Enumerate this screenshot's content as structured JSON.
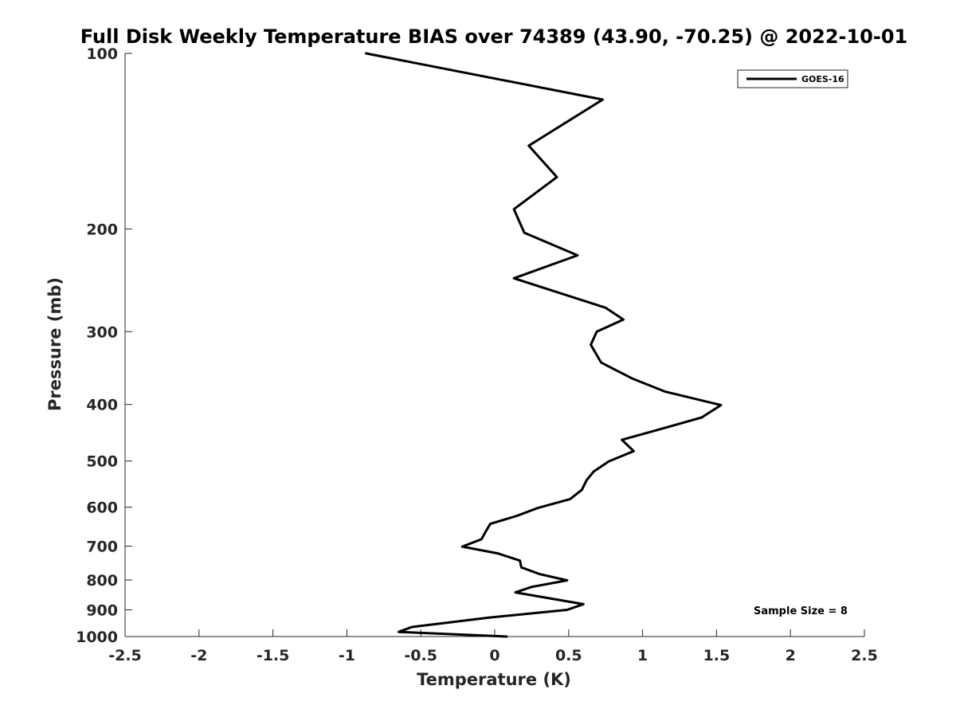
{
  "chart_data": {
    "type": "line",
    "title": "Full Disk Weekly Temperature BIAS over 74389 (43.90, -70.25) @ 2022-10-01",
    "xlabel": "Temperature (K)",
    "ylabel": "Pressure (mb)",
    "xlim": [
      -2.5,
      2.5
    ],
    "ylim": [
      100,
      1000
    ],
    "yscale": "log",
    "yreversed": true,
    "x_ticks": [
      -2.5,
      -2,
      -1.5,
      -1,
      -0.5,
      0,
      0.5,
      1,
      1.5,
      2,
      2.5
    ],
    "x_tick_labels": [
      "-2.5",
      "-2",
      "-1.5",
      "-1",
      "-0.5",
      "0",
      "0.5",
      "1",
      "1.5",
      "2",
      "2.5"
    ],
    "y_ticks": [
      100,
      200,
      300,
      400,
      500,
      600,
      700,
      800,
      900,
      1000
    ],
    "y_tick_labels": [
      "100",
      "200",
      "300",
      "400",
      "500",
      "600",
      "700",
      "800",
      "900",
      "1000"
    ],
    "grid": false,
    "legend": {
      "position": "top-right",
      "entries": [
        "GOES-16"
      ]
    },
    "annotation": "Sample Size = 8",
    "series": [
      {
        "name": "GOES-16",
        "color": "#000000",
        "points": [
          {
            "x": -0.87,
            "p": 100
          },
          {
            "x": 0.73,
            "p": 120
          },
          {
            "x": 0.23,
            "p": 144
          },
          {
            "x": 0.42,
            "p": 163
          },
          {
            "x": 0.13,
            "p": 185
          },
          {
            "x": 0.2,
            "p": 203
          },
          {
            "x": 0.56,
            "p": 222
          },
          {
            "x": 0.13,
            "p": 243
          },
          {
            "x": 0.75,
            "p": 273
          },
          {
            "x": 0.87,
            "p": 286
          },
          {
            "x": 0.69,
            "p": 300
          },
          {
            "x": 0.65,
            "p": 316
          },
          {
            "x": 0.72,
            "p": 339
          },
          {
            "x": 0.93,
            "p": 361
          },
          {
            "x": 1.15,
            "p": 380
          },
          {
            "x": 1.53,
            "p": 401
          },
          {
            "x": 1.4,
            "p": 421
          },
          {
            "x": 1.12,
            "p": 441
          },
          {
            "x": 0.86,
            "p": 460
          },
          {
            "x": 0.94,
            "p": 481
          },
          {
            "x": 0.77,
            "p": 501
          },
          {
            "x": 0.67,
            "p": 521
          },
          {
            "x": 0.62,
            "p": 540
          },
          {
            "x": 0.59,
            "p": 560
          },
          {
            "x": 0.51,
            "p": 581
          },
          {
            "x": 0.29,
            "p": 602
          },
          {
            "x": 0.15,
            "p": 621
          },
          {
            "x": -0.03,
            "p": 641
          },
          {
            "x": -0.06,
            "p": 660
          },
          {
            "x": -0.09,
            "p": 681
          },
          {
            "x": -0.22,
            "p": 701
          },
          {
            "x": 0.02,
            "p": 720
          },
          {
            "x": 0.17,
            "p": 741
          },
          {
            "x": 0.18,
            "p": 761
          },
          {
            "x": 0.3,
            "p": 781
          },
          {
            "x": 0.49,
            "p": 801
          },
          {
            "x": 0.25,
            "p": 822
          },
          {
            "x": 0.14,
            "p": 840
          },
          {
            "x": 0.6,
            "p": 880
          },
          {
            "x": 0.49,
            "p": 900
          },
          {
            "x": -0.04,
            "p": 928
          },
          {
            "x": -0.56,
            "p": 963
          },
          {
            "x": -0.65,
            "p": 982
          },
          {
            "x": 0.08,
            "p": 1000
          }
        ]
      }
    ]
  }
}
